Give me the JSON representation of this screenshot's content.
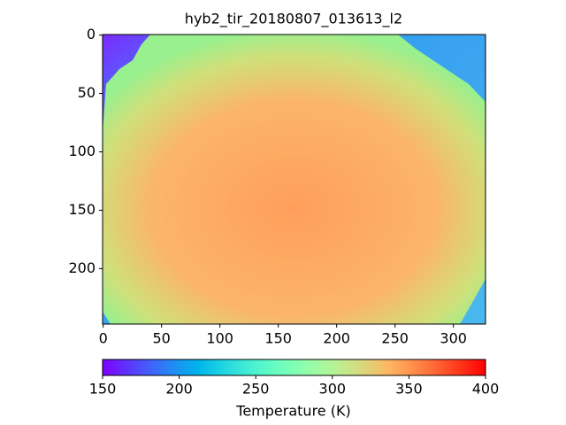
{
  "chart_data": {
    "type": "image",
    "title": "hyb2_tir_20180807_013613_l2",
    "xlim": [
      -0.5,
      327.5
    ],
    "xticks": [
      0,
      50,
      100,
      150,
      200,
      250,
      300
    ],
    "ylim": [
      247.5,
      -0.5
    ],
    "yticks": [
      0,
      50,
      100,
      150,
      200
    ],
    "colorbar": {
      "label": "Temperature (K)",
      "cmap": "rainbow",
      "lim": [
        150,
        400
      ],
      "ticks": [
        150,
        200,
        250,
        300,
        350,
        400
      ]
    }
  }
}
